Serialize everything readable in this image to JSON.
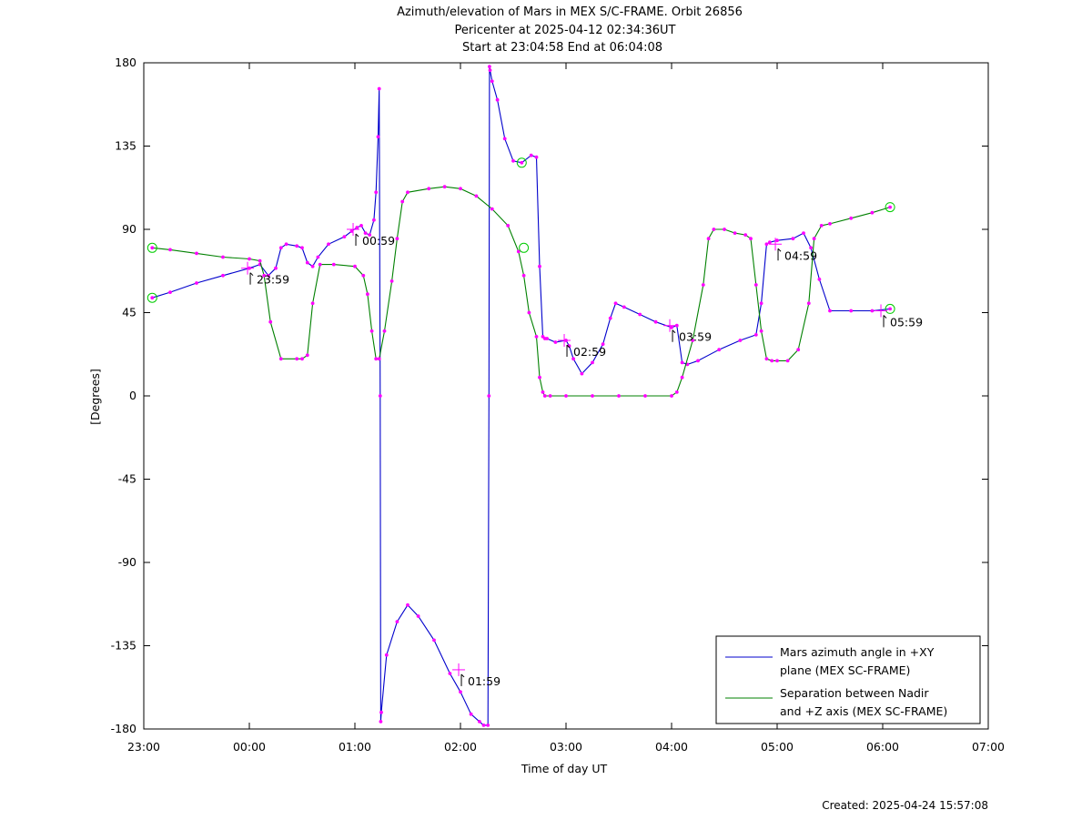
{
  "title_lines": [
    "Azimuth/elevation of Mars in MEX S/C-FRAME.  Orbit 26856",
    "Pericenter at 2025-04-12 02:34:36UT",
    "Start at 23:04:58 End at 06:04:08"
  ],
  "footer": "Created: 2025-04-24 15:57:08",
  "chart_data": {
    "type": "line",
    "xlabel": "Time of day UT",
    "ylabel": "[Degrees]",
    "xlim": [
      23,
      31
    ],
    "ylim": [
      -180,
      180
    ],
    "x_ticks": [
      23,
      24,
      25,
      26,
      27,
      28,
      29,
      30,
      31
    ],
    "x_tick_labels": [
      "23:00",
      "00:00",
      "01:00",
      "02:00",
      "03:00",
      "04:00",
      "05:00",
      "06:00",
      "07:00"
    ],
    "y_ticks": [
      180,
      135,
      90,
      45,
      0,
      -45,
      -90,
      -135,
      -180
    ],
    "y_tick_labels": [
      "180",
      "135",
      "90",
      "45",
      "0",
      "-45",
      "-90",
      "-135",
      "-180"
    ],
    "grid": false,
    "legend_position": "bottom-right",
    "series": [
      {
        "name": "Mars azimuth angle in +XY plane (MEX SC-FRAME)",
        "legend_lines": [
          "Mars azimuth angle in +XY",
          "plane (MEX SC-FRAME)"
        ],
        "color": "#0000cc",
        "x": [
          23.08,
          23.25,
          23.5,
          23.75,
          24.0,
          24.1,
          24.18,
          24.25,
          24.3,
          24.35,
          24.45,
          24.5,
          24.55,
          24.6,
          24.65,
          24.75,
          24.9,
          24.97,
          25.02,
          25.06,
          25.1,
          25.14,
          25.18,
          25.2,
          25.22,
          25.23,
          25.24,
          25.245,
          25.25,
          25.3,
          25.4,
          25.5,
          25.6,
          25.75,
          25.9,
          26.0,
          26.1,
          26.18,
          26.22,
          26.26,
          26.27,
          26.275,
          26.28,
          26.3,
          26.35,
          26.42,
          26.5,
          26.58,
          26.67,
          26.72,
          26.75,
          26.78,
          26.8,
          26.82,
          26.9,
          27.0,
          27.03,
          27.07,
          27.15,
          27.25,
          27.35,
          27.42,
          27.47,
          27.55,
          27.7,
          27.85,
          28.0,
          28.05,
          28.1,
          28.15,
          28.25,
          28.45,
          28.65,
          28.8,
          28.85,
          28.9,
          28.93,
          29.0,
          29.15,
          29.25,
          29.32,
          29.4,
          29.5,
          29.7,
          29.9,
          30.07
        ],
        "y": [
          53,
          56,
          61,
          65,
          69,
          71,
          65,
          69,
          80,
          82,
          81,
          80,
          72,
          70,
          75,
          82,
          86,
          89,
          91,
          92,
          88,
          87,
          95,
          110,
          140,
          166,
          0,
          -176,
          -171,
          -140,
          -122,
          -113,
          -119,
          -132,
          -150,
          -160,
          -172,
          -176,
          -178,
          -178,
          0,
          178,
          176,
          170,
          160,
          139,
          127,
          126,
          130,
          129,
          70,
          32,
          31,
          31,
          29,
          30,
          27,
          20,
          12,
          18,
          28,
          42,
          50,
          48,
          44,
          40,
          37,
          38,
          18,
          17,
          19,
          25,
          30,
          33,
          50,
          82,
          83,
          84,
          85,
          88,
          80,
          63,
          46,
          46,
          46,
          47
        ]
      },
      {
        "name": "Separation between Nadir and +Z axis (MEX SC-FRAME)",
        "legend_lines": [
          "Separation between Nadir",
          "and +Z axis (MEX SC-FRAME)"
        ],
        "color": "#008000",
        "x": [
          23.08,
          23.25,
          23.5,
          23.75,
          24.0,
          24.1,
          24.14,
          24.2,
          24.3,
          24.45,
          24.5,
          24.55,
          24.6,
          24.67,
          24.8,
          25.0,
          25.08,
          25.12,
          25.16,
          25.2,
          25.23,
          25.28,
          25.35,
          25.4,
          25.45,
          25.5,
          25.7,
          25.85,
          26.0,
          26.15,
          26.3,
          26.45,
          26.55,
          26.6,
          26.65,
          26.72,
          26.75,
          26.78,
          26.8,
          26.85,
          27.0,
          27.25,
          27.5,
          27.75,
          28.0,
          28.05,
          28.1,
          28.2,
          28.3,
          28.35,
          28.4,
          28.5,
          28.6,
          28.7,
          28.75,
          28.8,
          28.85,
          28.9,
          28.95,
          29.0,
          29.1,
          29.2,
          29.3,
          29.35,
          29.42,
          29.5,
          29.7,
          29.9,
          30.07
        ],
        "y": [
          80,
          79,
          77,
          75,
          74,
          73,
          65,
          40,
          20,
          20,
          20,
          22,
          50,
          71,
          71,
          70,
          65,
          55,
          35,
          20,
          20,
          35,
          62,
          85,
          105,
          110,
          112,
          113,
          112,
          108,
          101,
          92,
          78,
          65,
          45,
          32,
          10,
          2,
          0,
          0,
          0,
          0,
          0,
          0,
          0,
          2,
          10,
          30,
          60,
          85,
          90,
          90,
          88,
          87,
          85,
          60,
          35,
          20,
          19,
          19,
          19,
          25,
          50,
          85,
          92,
          93,
          96,
          99,
          102
        ]
      }
    ],
    "point_annotations": [
      {
        "label": "23:59",
        "x": 23.983,
        "y": 69
      },
      {
        "label": "00:59",
        "x": 24.983,
        "y": 90
      },
      {
        "label": "01:59",
        "x": 25.983,
        "y": -148
      },
      {
        "label": "02:59",
        "x": 26.983,
        "y": 30
      },
      {
        "label": "03:59",
        "x": 27.983,
        "y": 38
      },
      {
        "label": "04:59",
        "x": 28.983,
        "y": 82
      },
      {
        "label": "05:59",
        "x": 29.983,
        "y": 46
      }
    ]
  }
}
